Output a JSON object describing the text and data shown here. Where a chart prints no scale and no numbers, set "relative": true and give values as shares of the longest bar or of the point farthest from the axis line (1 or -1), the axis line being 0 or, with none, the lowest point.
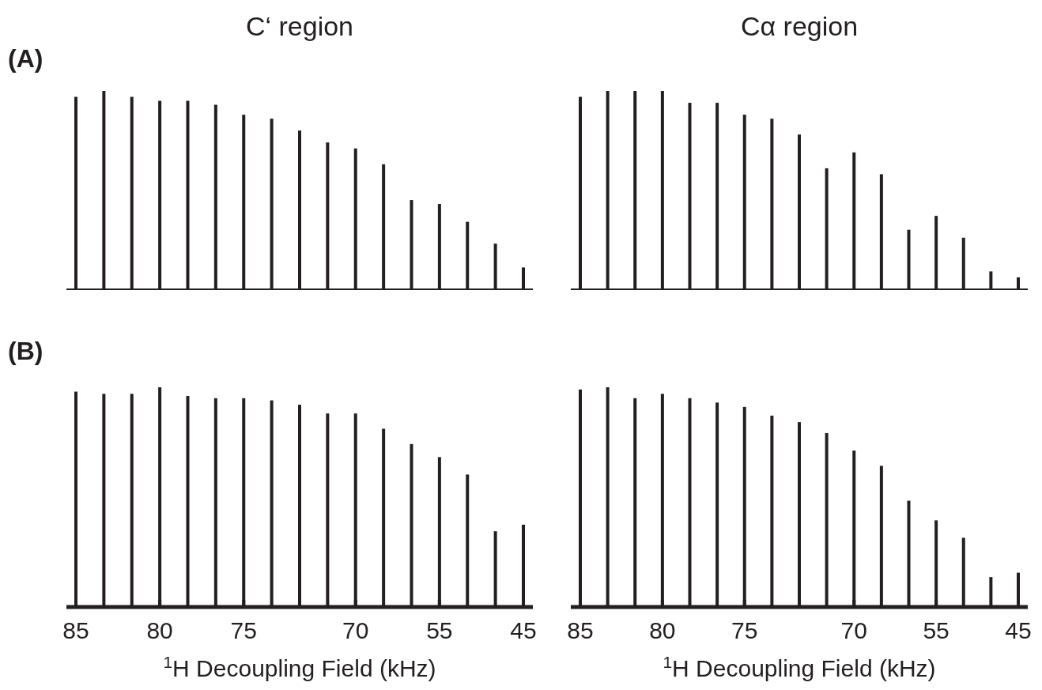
{
  "chart_data": [
    {
      "type": "bar",
      "title": "C‘ region",
      "annotations": [
        "(A)"
      ],
      "relative": true,
      "tick_labels": false,
      "categories": [
        null,
        null,
        null,
        null,
        null,
        null,
        null,
        null,
        null,
        null,
        null,
        null,
        null,
        null,
        null,
        null,
        null
      ],
      "series": [
        {
          "color": "#231f20",
          "values": [
            0.97,
            1,
            0.97,
            0.95,
            0.95,
            0.93,
            0.88,
            0.86,
            0.8,
            0.74,
            0.71,
            0.63,
            0.45,
            0.43,
            0.34,
            0.23,
            0.11
          ]
        }
      ]
    },
    {
      "type": "bar",
      "title": "Cα region",
      "relative": true,
      "tick_labels": false,
      "categories": [
        null,
        null,
        null,
        null,
        null,
        null,
        null,
        null,
        null,
        null,
        null,
        null,
        null,
        null,
        null,
        null,
        null
      ],
      "series": [
        {
          "color": "#231f20",
          "values": [
            0.97,
            1,
            1,
            1,
            0.94,
            0.94,
            0.88,
            0.86,
            0.78,
            0.61,
            0.69,
            0.58,
            0.3,
            0.37,
            0.26,
            0.09,
            0.06
          ]
        }
      ]
    },
    {
      "type": "bar",
      "annotations": [
        "(B)"
      ],
      "xlabel": "$^{1}$H Decoupling Field (kHz)",
      "relative": true,
      "tick_labels": "x",
      "categories": [
        "85",
        null,
        null,
        "80",
        null,
        null,
        "75",
        null,
        null,
        null,
        "70",
        null,
        null,
        "55",
        null,
        null,
        "45"
      ],
      "series": [
        {
          "color": "#231f20",
          "values": [
            0.98,
            0.97,
            0.97,
            1,
            0.96,
            0.95,
            0.95,
            0.94,
            0.92,
            0.88,
            0.88,
            0.81,
            0.74,
            0.68,
            0.6,
            0.34,
            0.37
          ]
        }
      ]
    },
    {
      "type": "bar",
      "xlabel": "$^{1}$H Decoupling Field (kHz)",
      "relative": true,
      "tick_labels": "x",
      "categories": [
        "85",
        null,
        null,
        "80",
        null,
        null,
        "75",
        null,
        null,
        null,
        "70",
        null,
        null,
        "55",
        null,
        null,
        "45"
      ],
      "series": [
        {
          "color": "#231f20",
          "values": [
            0.99,
            1,
            0.95,
            0.97,
            0.95,
            0.93,
            0.91,
            0.87,
            0.84,
            0.79,
            0.71,
            0.64,
            0.48,
            0.39,
            0.31,
            0.13,
            0.15
          ]
        }
      ]
    }
  ]
}
